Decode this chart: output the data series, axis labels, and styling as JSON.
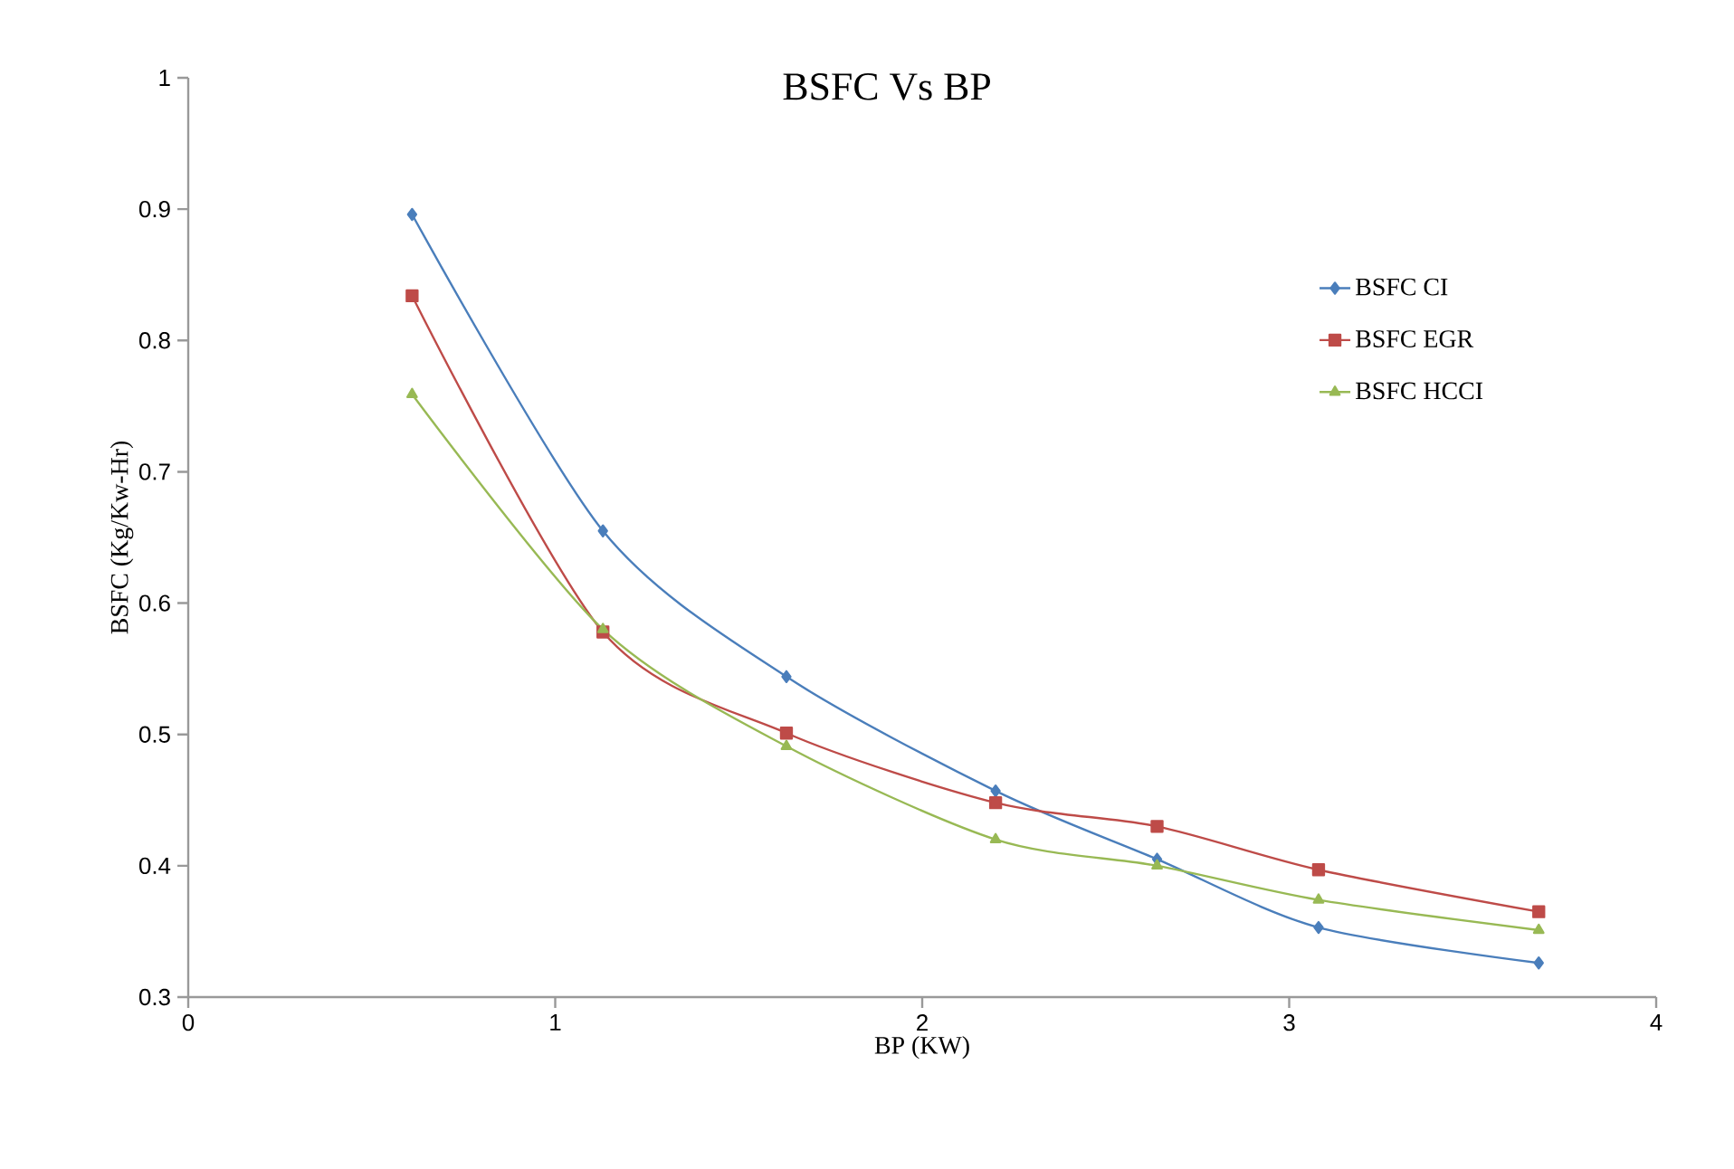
{
  "chart_data": {
    "type": "line",
    "title": "BSFC Vs BP",
    "xlabel": "BP (KW)",
    "ylabel": "BSFC (Kg/Kw-Hr)",
    "xlim": [
      0,
      4
    ],
    "xticks": [
      0,
      1,
      2,
      3,
      4
    ],
    "ylim": [
      0.3,
      1
    ],
    "yticks": [
      0.3,
      0.4,
      0.5,
      0.6,
      0.7,
      0.8,
      0.9,
      1
    ],
    "legend": "right",
    "line_style": "solid",
    "x": [
      0.61,
      1.13,
      1.63,
      2.2,
      2.64,
      3.08,
      3.68
    ],
    "series": [
      {
        "name": "BSFC CI",
        "color": "#4a7ebb",
        "marker": "diamond",
        "values": [
          0.896,
          0.655,
          0.544,
          0.457,
          0.405,
          0.353,
          0.326
        ]
      },
      {
        "name": "BSFC EGR",
        "color": "#be4b48",
        "marker": "square",
        "values": [
          0.834,
          0.578,
          0.501,
          0.448,
          0.43,
          0.397,
          0.365
        ]
      },
      {
        "name": "BSFC HCCI",
        "color": "#98b954",
        "marker": "triangle",
        "values": [
          0.759,
          0.58,
          0.491,
          0.42,
          0.4,
          0.374,
          0.351
        ]
      }
    ]
  }
}
